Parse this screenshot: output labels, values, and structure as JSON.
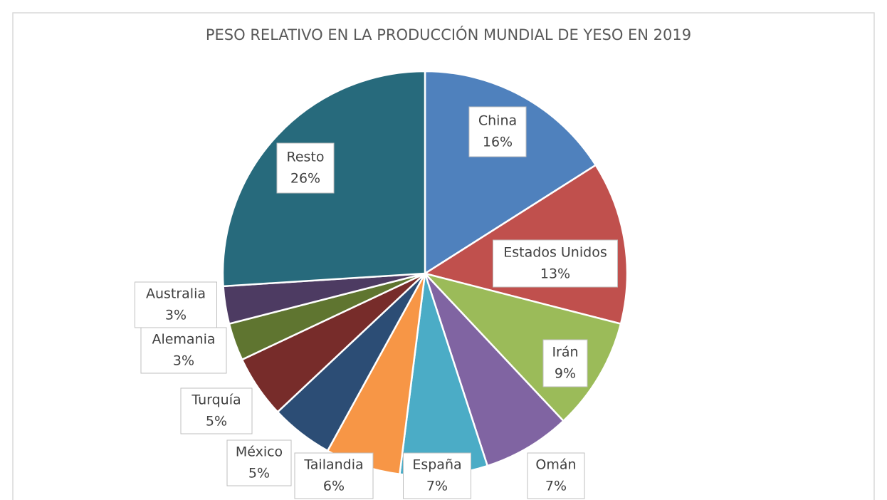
{
  "chart_data": {
    "type": "pie",
    "title": "PESO RELATIVO EN LA PRODUCCIÓN MUNDIAL DE YESO EN 2019",
    "categories": [
      "China",
      "Estados Unidos",
      "Irán",
      "Omán",
      "España",
      "Tailandia",
      "México",
      "Turquía",
      "Alemania",
      "Australia",
      "Resto"
    ],
    "values": [
      16,
      13,
      9,
      7,
      7,
      6,
      5,
      5,
      3,
      3,
      26
    ],
    "value_labels": [
      "16%",
      "13%",
      "9%",
      "7%",
      "7%",
      "6%",
      "5%",
      "5%",
      "3%",
      "3%",
      "26%"
    ],
    "colors": [
      "#4f81bd",
      "#c0504d",
      "#9bbb59",
      "#8064a2",
      "#4bacc6",
      "#f79646",
      "#2c4d75",
      "#772c2a",
      "#5f7530",
      "#4d3b62",
      "#276a7c"
    ]
  }
}
